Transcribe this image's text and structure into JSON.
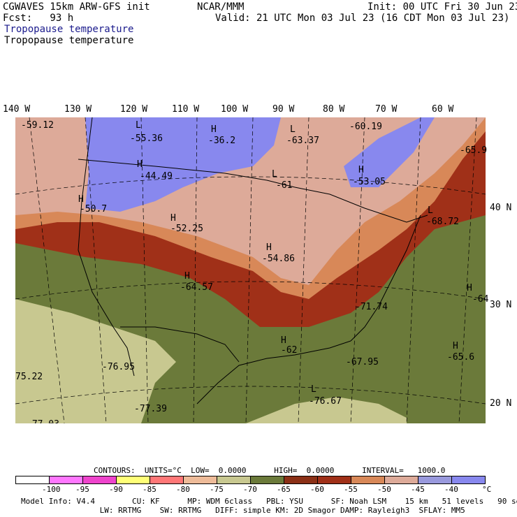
{
  "header": {
    "model": "CGWAVES 15km ARW-GFS init",
    "org": "NCAR/MMM",
    "init": "Init: 00 UTC Fri 30 Jun 23",
    "fcst": "Fcst:   93 h",
    "valid": "Valid: 21 UTC Mon 03 Jul 23 (16 CDT Mon 03 Jul 23)",
    "field_title_1": "Tropopause temperature",
    "field_title_2": "Tropopause temperature"
  },
  "lon_labels": [
    "140 W",
    "130 W",
    "120 W",
    "110 W",
    "100 W",
    "90 W",
    "80 W",
    "70 W",
    "60 W"
  ],
  "lat_labels": [
    "40 N",
    "30 N",
    "20 N"
  ],
  "map_labels": {
    "h": [
      "H",
      "H",
      "H",
      "H",
      "H",
      "H",
      "H",
      "H",
      "H",
      "H"
    ],
    "l": [
      "L",
      "L",
      "L",
      "L",
      "L"
    ],
    "values": [
      "-59.12",
      "-55.36",
      "-36.2",
      "-63.37",
      "-60.19",
      "-44.49",
      "-61",
      "-53.05",
      "-65.9",
      "-50.7",
      "-52.25",
      "-68.72",
      "-54.86",
      "-64.57",
      "-64",
      "-71.74",
      "-62",
      "-67.95",
      "-65.6",
      "-76.95",
      "75.22",
      "-77.39",
      "-76.67",
      "-77.03"
    ]
  },
  "colorbar": {
    "contours_line": "CONTOURS:  UNITS=°C  LOW=  0.0000      HIGH=  0.0000      INTERVAL=   1000.0",
    "colors": [
      "#ffffff",
      "#ff77ff",
      "#ee44cc",
      "#ffff77",
      "#ff7777",
      "#eebb99",
      "#c8c890",
      "#6b7a3a",
      "#8b3016",
      "#a03018",
      "#d88858",
      "#ddaa99",
      "#9999dd",
      "#8888ee",
      "#7777ff"
    ],
    "ticks": [
      "-100",
      "-95",
      "-90",
      "-85",
      "-80",
      "-75",
      "-70",
      "-65",
      "-60",
      "-55",
      "-50",
      "-45",
      "-40"
    ],
    "unit": "°C"
  },
  "footer": {
    "line1": "Model Info: V4.4        CU: KF      MP: WDM 6class   PBL: YSU      SF: Noah LSM    15 km   51 levels   90 sec",
    "line2": "                 LW: RRTMG    SW: RRTMG   DIFF: simple KM: 2D Smagor DAMP: Rayleigh3  SFLAY: MM5"
  },
  "colors": {
    "purple": "#8888ee",
    "pink_brown": "#ddaa99",
    "orange": "#d88858",
    "dark_red": "#a03018",
    "olive": "#6b7a3a",
    "khaki": "#c8c890"
  }
}
